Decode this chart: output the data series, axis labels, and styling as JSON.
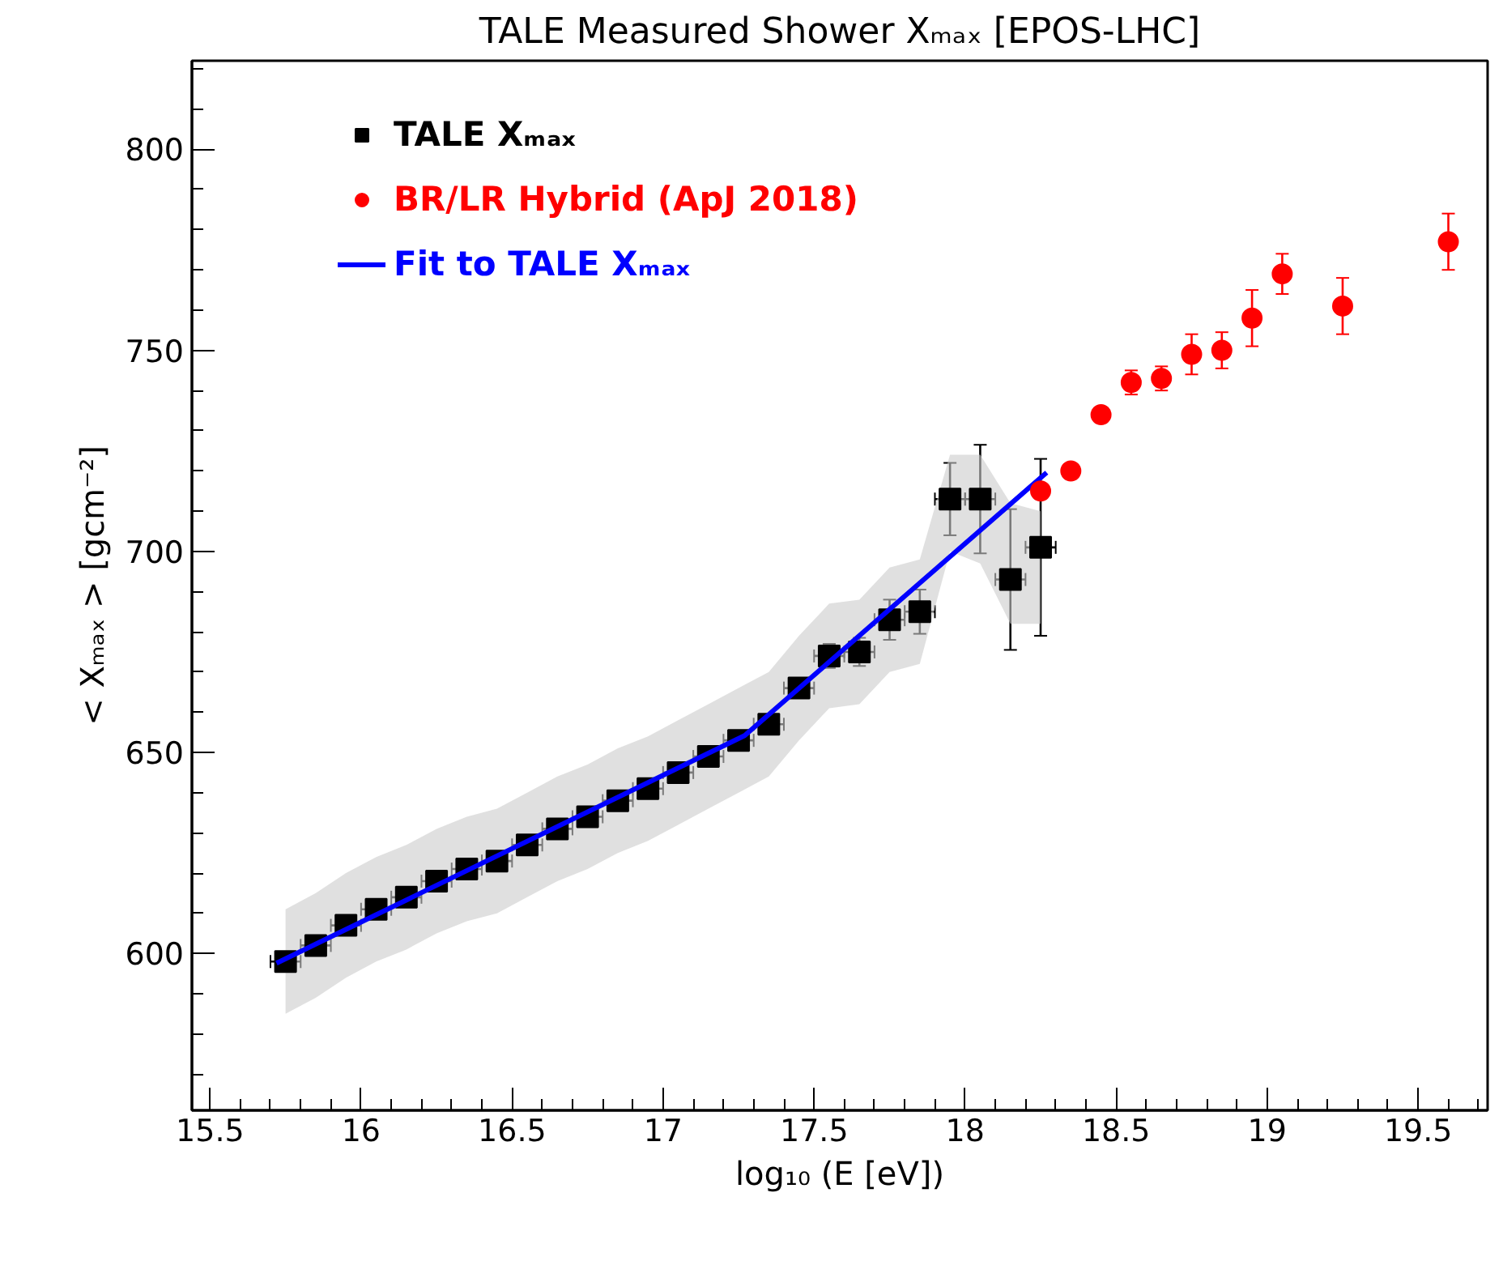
{
  "chart_data": {
    "type": "scatter",
    "title": "TALE Measured Shower Xₘₐₓ [EPOS-LHC]",
    "xlabel": "log₁₀ (E [eV])",
    "ylabel": "< Xₘₐₓ > [gcm⁻²]",
    "xlim": [
      15.44,
      19.73
    ],
    "ylim": [
      561,
      822
    ],
    "xticks": [
      15.5,
      16,
      16.5,
      17,
      17.5,
      18,
      18.5,
      19,
      19.5
    ],
    "yticks": [
      600,
      650,
      700,
      750,
      800
    ],
    "grid": false,
    "legend": "top left",
    "series": [
      {
        "name": "TALE Xₘₐₓ",
        "marker": "square",
        "color": "#000000",
        "x": [
          15.75,
          15.85,
          15.95,
          16.05,
          16.15,
          16.25,
          16.35,
          16.45,
          16.55,
          16.65,
          16.75,
          16.85,
          16.95,
          17.05,
          17.15,
          17.25,
          17.35,
          17.45,
          17.55,
          17.65,
          17.75,
          17.85,
          17.95,
          18.05,
          18.15,
          18.25
        ],
        "values": [
          598,
          602,
          607,
          611,
          614,
          618,
          621,
          623,
          627,
          631,
          634,
          638,
          641,
          645,
          649,
          653,
          657,
          666,
          674,
          675,
          683,
          685,
          713,
          713,
          693,
          701
        ],
        "errors": [
          null,
          null,
          null,
          null,
          null,
          null,
          null,
          null,
          null,
          null,
          null,
          null,
          null,
          null,
          null,
          null,
          null,
          null,
          3,
          3.5,
          5,
          5.5,
          9,
          13.5,
          17.5,
          22
        ],
        "xerrors": [
          0.05,
          0.05,
          0.05,
          0.05,
          0.05,
          0.05,
          0.05,
          0.05,
          0.05,
          0.05,
          0.05,
          0.05,
          0.05,
          0.05,
          0.05,
          0.05,
          0.05,
          0.05,
          0.05,
          0.05,
          0.05,
          0.05,
          0.05,
          0.05,
          0.05,
          0.05
        ],
        "lower": [
          585,
          589,
          594,
          598,
          601,
          605,
          608,
          610,
          614,
          618,
          621,
          625,
          628,
          632,
          636,
          640,
          644,
          653,
          661,
          662,
          670,
          672,
          700,
          697,
          682,
          682
        ],
        "upper": [
          611,
          615,
          620,
          624,
          627,
          631,
          634,
          636,
          640,
          644,
          647,
          651,
          654,
          658,
          662,
          666,
          670,
          679,
          687,
          688,
          696,
          698,
          724,
          724,
          712,
          710
        ]
      },
      {
        "name": "BR/LR Hybrid (ApJ 2018)",
        "marker": "circle",
        "color": "#ff0000",
        "x": [
          18.25,
          18.35,
          18.45,
          18.55,
          18.65,
          18.75,
          18.85,
          18.95,
          19.05,
          19.25,
          19.6
        ],
        "values": [
          715,
          720,
          734,
          742,
          743,
          749,
          750,
          758,
          769,
          761,
          777
        ],
        "errors": [
          null,
          null,
          null,
          3,
          3,
          5,
          4.5,
          7,
          5,
          7,
          7
        ]
      },
      {
        "name": "Fit to TALE Xₘₐₓ",
        "type": "line",
        "color": "#0000ff",
        "x": [
          15.72,
          17.27,
          18.27
        ],
        "values": [
          597.6,
          654.2,
          719.6
        ]
      }
    ]
  }
}
